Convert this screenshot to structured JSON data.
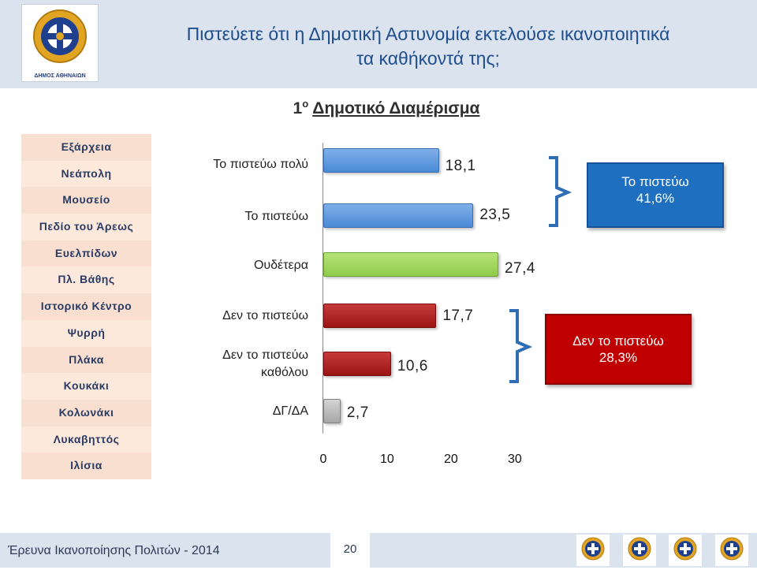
{
  "header": {
    "title_line1": "Πιστεύετε ότι η Δημοτική Αστυνομία εκτελούσε ικανοποιητικά",
    "title_line2": "τα καθήκοντά της;",
    "logo_caption": "ΔΗΜΟΣ ΑΘΗΝΑΙΩΝ"
  },
  "subtitle": {
    "number": "1",
    "sup": "ο",
    "text": "Δημοτικό Διαμέρισμα"
  },
  "districts": [
    "Εξάρχεια",
    "Νεάπολη",
    "Μουσείο",
    "Πεδίο του Άρεως",
    "Ευελπίδων",
    "Πλ. Βάθης",
    "Ιστορικό Κέντρο",
    "Ψυρρή",
    "Πλάκα",
    "Κουκάκι",
    "Κολωνάκι",
    "Λυκαβηττός",
    "Ιλίσια"
  ],
  "colors": {
    "blue": "#4a8ad6",
    "green": "#8fcb4c",
    "red": "#9b1414",
    "grey": "#a6a6a6",
    "summary_blue": "#1f6fc1",
    "summary_red": "#c00000"
  },
  "chart_data": {
    "type": "bar",
    "orientation": "horizontal",
    "categories": [
      "Το πιστεύω πολύ",
      "Το πιστεύω",
      "Ουδέτερα",
      "Δεν το πιστεύω",
      "Δεν το πιστεύω καθόλου",
      "ΔΓ/ΔΑ"
    ],
    "values": [
      18.1,
      23.5,
      27.4,
      17.7,
      10.6,
      2.7
    ],
    "value_labels": [
      "18,1",
      "23,5",
      "27,4",
      "17,7",
      "10,6",
      "2,7"
    ],
    "bar_colors": [
      "blue",
      "blue",
      "green",
      "red",
      "red",
      "grey"
    ],
    "xlim": [
      0,
      30
    ],
    "xticks": [
      "0",
      "10",
      "20",
      "30"
    ],
    "summaries": [
      {
        "label": "Το πιστεύω",
        "value": "41,6%",
        "color": "blue"
      },
      {
        "label": "Δεν το πιστεύω",
        "value": "28,3%",
        "color": "red"
      }
    ]
  },
  "footer": {
    "text": "Έρευνα Ικανοποίησης Πολιτών - 2014",
    "page": "20"
  }
}
